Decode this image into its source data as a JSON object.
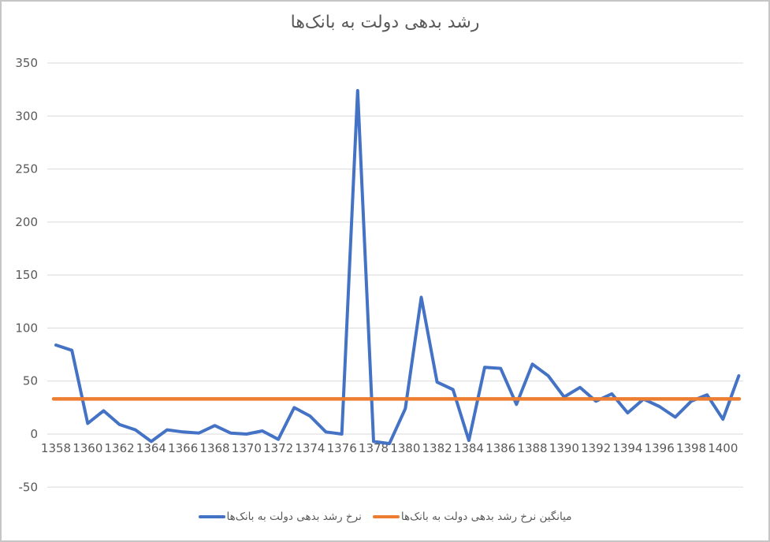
{
  "title": "رشد بدهی دولت به بانک‌ها",
  "colors": {
    "text": "#595959",
    "gridline": "#D9D9D9",
    "background": "#FFFFFF",
    "border": "#C6C6C6",
    "series_blue": "#4472C4",
    "series_orange": "#ED7D31"
  },
  "chart_data": {
    "type": "line",
    "title": "رشد بدهی دولت به بانک‌ها",
    "x": [
      1358,
      1359,
      1360,
      1361,
      1362,
      1363,
      1364,
      1365,
      1366,
      1367,
      1368,
      1369,
      1370,
      1371,
      1372,
      1373,
      1374,
      1375,
      1376,
      1377,
      1378,
      1379,
      1380,
      1381,
      1382,
      1383,
      1384,
      1385,
      1386,
      1387,
      1388,
      1389,
      1390,
      1391,
      1392,
      1393,
      1394,
      1395,
      1396,
      1397,
      1398,
      1399,
      1400,
      1401
    ],
    "series": [
      {
        "name": "نرخ رشد بدهی دولت به بانک‌ها",
        "color": "#4472C4",
        "values": [
          84,
          79,
          10,
          22,
          9,
          4,
          -7,
          4,
          2,
          1,
          8,
          1,
          0,
          3,
          -5,
          25,
          17,
          2,
          0,
          324,
          -7,
          -9,
          24,
          129,
          49,
          42,
          -6,
          63,
          62,
          28,
          66,
          55,
          35,
          44,
          31,
          38,
          20,
          33,
          26,
          16,
          31,
          37,
          14,
          55
        ]
      },
      {
        "name": "میانگین نرخ رشد بدهی دولت به بانک‌ها",
        "color": "#ED7D31",
        "kind": "constant",
        "value": 33.2
      }
    ],
    "ylim": [
      -50,
      350
    ],
    "yticks": [
      -50,
      0,
      50,
      100,
      150,
      200,
      250,
      300,
      350
    ],
    "xticks": [
      1358,
      1360,
      1362,
      1364,
      1366,
      1368,
      1370,
      1372,
      1374,
      1376,
      1378,
      1380,
      1382,
      1384,
      1386,
      1388,
      1390,
      1392,
      1394,
      1396,
      1398,
      1400
    ],
    "xlabel": "",
    "ylabel": "",
    "grid": "horizontal",
    "legend_position": "bottom"
  }
}
